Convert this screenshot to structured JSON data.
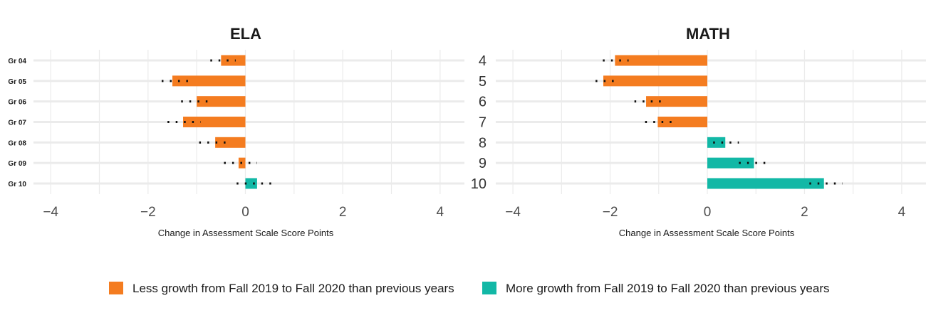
{
  "chart_data": [
    {
      "type": "bar",
      "orientation": "horizontal",
      "title": "ELA",
      "xlabel": "Change in Assessment Scale Score Points",
      "ylabel": "",
      "categories": [
        "Gr 04",
        "Gr 05",
        "Gr 06",
        "Gr 07",
        "Gr 08",
        "Gr 09",
        "Gr 10"
      ],
      "values": [
        -0.5,
        -1.5,
        -1.0,
        -1.28,
        -0.62,
        -0.14,
        0.24
      ],
      "ci_low": [
        -0.72,
        -1.72,
        -1.32,
        -1.6,
        -0.95,
        -0.44,
        -0.18
      ],
      "ci_high": [
        -0.2,
        -1.18,
        -0.65,
        -0.92,
        -0.3,
        0.24,
        0.66
      ],
      "xlim": [
        -4.5,
        4.5
      ],
      "xticks": [
        -4,
        -2,
        0,
        2,
        4
      ],
      "xtick_labels": [
        "−4",
        "−2",
        "0",
        "2",
        "4"
      ],
      "grid": true
    },
    {
      "type": "bar",
      "orientation": "horizontal",
      "title": "MATH",
      "xlabel": "Change in Assessment Scale Score Points",
      "ylabel": "",
      "categories": [
        "4",
        "5",
        "6",
        "7",
        "8",
        "9",
        "10"
      ],
      "values": [
        -1.9,
        -2.14,
        -1.26,
        -1.02,
        0.37,
        0.96,
        2.4
      ],
      "ci_low": [
        -2.15,
        -2.3,
        -1.5,
        -1.28,
        0.12,
        0.65,
        2.1
      ],
      "ci_high": [
        -1.62,
        -1.92,
        -0.95,
        -0.72,
        0.65,
        1.3,
        2.78
      ],
      "xlim": [
        -4.5,
        4.5
      ],
      "xticks": [
        -4,
        -2,
        0,
        2,
        4
      ],
      "xtick_labels": [
        "−4",
        "−2",
        "0",
        "2",
        "4"
      ],
      "grid": true
    }
  ],
  "legend": {
    "position": "bottom",
    "items": [
      {
        "label": "Less growth from Fall 2019 to Fall 2020 than previous years",
        "color": "#f47c20"
      },
      {
        "label": "More growth from Fall 2019 to Fall 2020 than previous years",
        "color": "#12b8a6"
      }
    ]
  },
  "colors": {
    "negative": "#f47c20",
    "positive": "#12b8a6",
    "ci": "#111111"
  }
}
